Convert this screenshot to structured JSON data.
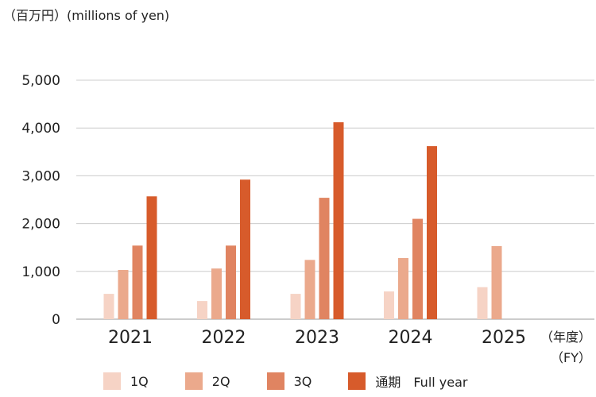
{
  "unit_label": "（百万円）(millions of yen)",
  "fy_label_jp": "（年度）",
  "fy_label_en": "（FY）",
  "colors": {
    "q1": "#f6d3c5",
    "q2": "#eba98c",
    "q3": "#e08461",
    "full": "#d75b2b",
    "grid": "#cccccc",
    "axis": "#999999"
  },
  "legend": [
    {
      "key": "q1",
      "label": "1Q"
    },
    {
      "key": "q2",
      "label": "2Q"
    },
    {
      "key": "q3",
      "label": "3Q"
    },
    {
      "key": "full",
      "label": "通期　Full year"
    }
  ],
  "chart_data": {
    "type": "bar",
    "categories": [
      "2021",
      "2022",
      "2023",
      "2024",
      "2025"
    ],
    "ylim": [
      0,
      5000
    ],
    "yticks": [
      0,
      1000,
      2000,
      3000,
      4000,
      5000
    ],
    "ytick_labels": [
      "0",
      "1,000",
      "2,000",
      "3,000",
      "4,000",
      "5,000"
    ],
    "grid": true,
    "legend_position": "bottom",
    "series": [
      {
        "name": "1Q",
        "key": "q1",
        "values": [
          530,
          380,
          530,
          580,
          670
        ]
      },
      {
        "name": "2Q",
        "key": "q2",
        "values": [
          1030,
          1060,
          1240,
          1280,
          1530
        ]
      },
      {
        "name": "3Q",
        "key": "q3",
        "values": [
          1540,
          1540,
          2540,
          2100,
          null
        ]
      },
      {
        "name": "通期　Full year",
        "key": "full",
        "values": [
          2570,
          2920,
          4120,
          3620,
          null
        ]
      }
    ]
  }
}
